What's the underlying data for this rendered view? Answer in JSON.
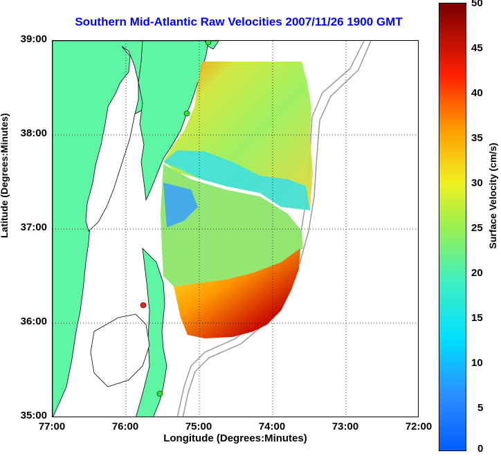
{
  "title": "Southern Mid-Atlantic Raw Velocities 2007/11/26 1900 GMT",
  "axes": {
    "xlabel": "Longitude (Degrees:Minutes)",
    "ylabel": "Latitude (Degrees:Minutes)",
    "x_ticks": [
      "77:00",
      "76:00",
      "75:00",
      "74:00",
      "73:00",
      "72:00"
    ],
    "y_ticks": [
      "39:00",
      "38:00",
      "37:00",
      "36:00",
      "35:00"
    ],
    "xlim": [
      -77,
      -72
    ],
    "ylim": [
      35,
      39
    ]
  },
  "colorbar": {
    "label": "Surface Velocity (cm/s)",
    "ticks": [
      "50",
      "45",
      "40",
      "35",
      "30",
      "25",
      "20",
      "15",
      "10",
      "5",
      "0"
    ],
    "range": [
      0,
      50
    ],
    "colormap": "jet"
  },
  "colors": {
    "title": "#0000ff",
    "land": "#5ef5a4",
    "coastline": "#000000",
    "bathymetry": "#999999",
    "station_green": "#33dd33",
    "station_red": "#ee2222"
  },
  "stations": [
    {
      "color": "green",
      "lon": -74.86,
      "lat": 39.0
    },
    {
      "color": "green",
      "lon": -75.16,
      "lat": 38.2
    },
    {
      "color": "red",
      "lon": -75.72,
      "lat": 36.18
    },
    {
      "color": "green",
      "lon": -75.53,
      "lat": 35.25
    }
  ]
}
